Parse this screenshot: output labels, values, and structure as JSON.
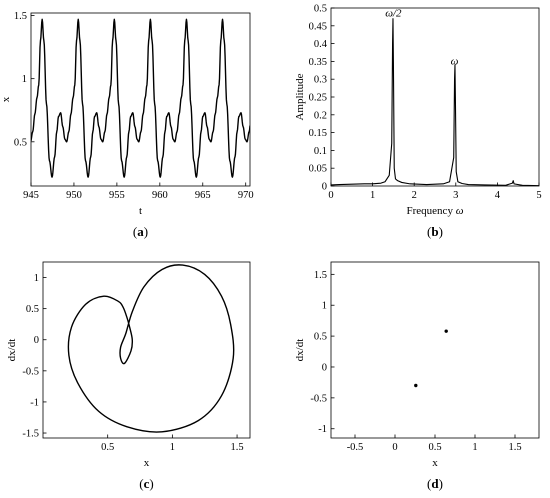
{
  "chart_data": [
    {
      "id": "a",
      "type": "line",
      "panel_label_pre": "(",
      "panel_label_letter": "a",
      "panel_label_post": ")",
      "xlabel": "t",
      "ylabel": "x",
      "xlim": [
        945,
        970.5
      ],
      "ylim": [
        0.15,
        1.52
      ],
      "xticks": [
        945,
        950,
        955,
        960,
        965,
        970
      ],
      "yticks": [
        0.5,
        1,
        1.5
      ],
      "grid": false,
      "series": [
        {
          "period": 4.2,
          "phase_t0": 945.9,
          "waveform_one_period": {
            "x": [
              0.0,
              0.2,
              0.4,
              0.6,
              0.9,
              1.25,
              1.55,
              1.85,
              2.1,
              2.3,
              2.55,
              2.8,
              3.05,
              3.25,
              3.5,
              3.75,
              4.0,
              4.2
            ],
            "y": [
              0.95,
              1.3,
              1.47,
              1.3,
              0.8,
              0.35,
              0.22,
              0.38,
              0.58,
              0.7,
              0.73,
              0.62,
              0.52,
              0.5,
              0.58,
              0.72,
              0.85,
              0.95
            ]
          }
        }
      ]
    },
    {
      "id": "b",
      "type": "line",
      "panel_label_pre": "(",
      "panel_label_letter": "b",
      "panel_label_post": ")",
      "xlabel_text": "Frequency ",
      "xlabel_symbol": "ω",
      "ylabel": "Amplitude",
      "xlim": [
        0,
        5
      ],
      "ylim": [
        0,
        0.5
      ],
      "xticks": [
        0,
        1,
        2,
        3,
        4,
        5
      ],
      "yticks": [
        0,
        0.05,
        0.1,
        0.15,
        0.2,
        0.25,
        0.3,
        0.35,
        0.4,
        0.45,
        0.5
      ],
      "grid": false,
      "annotations": [
        {
          "text": "ω/2",
          "x": 1.5,
          "y": 0.47
        },
        {
          "text": "ω",
          "x": 2.97,
          "y": 0.335
        }
      ],
      "series": [
        {
          "peaks": [
            {
              "x": 1.49,
              "y": 0.47
            },
            {
              "x": 2.98,
              "y": 0.34
            },
            {
              "x": 4.38,
              "y": 0.015
            }
          ],
          "x": [
            0,
            0.2,
            0.5,
            0.8,
            1.0,
            1.2,
            1.3,
            1.4,
            1.46,
            1.48,
            1.49,
            1.5,
            1.52,
            1.55,
            1.6,
            1.7,
            1.9,
            2.3,
            2.7,
            2.85,
            2.95,
            2.97,
            2.98,
            2.99,
            3.01,
            3.05,
            3.15,
            3.3,
            3.7,
            4.2,
            4.36,
            4.38,
            4.4,
            4.6,
            5.0
          ],
          "y": [
            0.003,
            0.004,
            0.005,
            0.006,
            0.006,
            0.008,
            0.012,
            0.03,
            0.12,
            0.4,
            0.47,
            0.35,
            0.05,
            0.02,
            0.015,
            0.01,
            0.006,
            0.004,
            0.006,
            0.012,
            0.08,
            0.3,
            0.34,
            0.25,
            0.04,
            0.012,
            0.007,
            0.004,
            0.003,
            0.002,
            0.008,
            0.015,
            0.006,
            0.002,
            0.001
          ]
        }
      ]
    },
    {
      "id": "c",
      "type": "line",
      "panel_label_pre": "(",
      "panel_label_letter": "c",
      "panel_label_post": ")",
      "xlabel": "x",
      "ylabel": "dx/dt",
      "xlim": [
        0.0,
        1.6
      ],
      "ylim": [
        -1.58,
        1.25
      ],
      "xticks": [
        0.5,
        1,
        1.5
      ],
      "yticks": [
        -1.5,
        -1,
        -0.5,
        0,
        0.5,
        1
      ],
      "grid": false,
      "series": [
        {
          "closed": true,
          "x": [
            0.65,
            0.62,
            0.58,
            0.47,
            0.33,
            0.22,
            0.2,
            0.27,
            0.43,
            0.65,
            0.92,
            1.2,
            1.38,
            1.47,
            1.45,
            1.38,
            1.25,
            1.08,
            0.92,
            0.78,
            0.69,
            0.64,
            0.6,
            0.6,
            0.63,
            0.68,
            0.69,
            0.67,
            0.65
          ],
          "y": [
            0.35,
            0.52,
            0.62,
            0.7,
            0.57,
            0.2,
            -0.25,
            -0.7,
            -1.15,
            -1.4,
            -1.48,
            -1.3,
            -0.9,
            -0.3,
            0.25,
            0.7,
            1.05,
            1.2,
            1.13,
            0.85,
            0.45,
            0.1,
            -0.12,
            -0.3,
            -0.38,
            -0.18,
            0.0,
            0.2,
            0.35
          ]
        }
      ]
    },
    {
      "id": "d",
      "type": "scatter",
      "panel_label_pre": "(",
      "panel_label_letter": "d",
      "panel_label_post": ")",
      "xlabel": "x",
      "ylabel": "dx/dt",
      "xlim": [
        -0.8,
        1.8
      ],
      "ylim": [
        -1.15,
        1.7
      ],
      "xticks": [
        -0.5,
        0,
        0.5,
        1,
        1.5
      ],
      "yticks": [
        -1,
        -0.5,
        0,
        0.5,
        1,
        1.5
      ],
      "grid": false,
      "series": [
        {
          "x": [
            0.64,
            0.26
          ],
          "y": [
            0.58,
            -0.3
          ]
        }
      ]
    }
  ]
}
